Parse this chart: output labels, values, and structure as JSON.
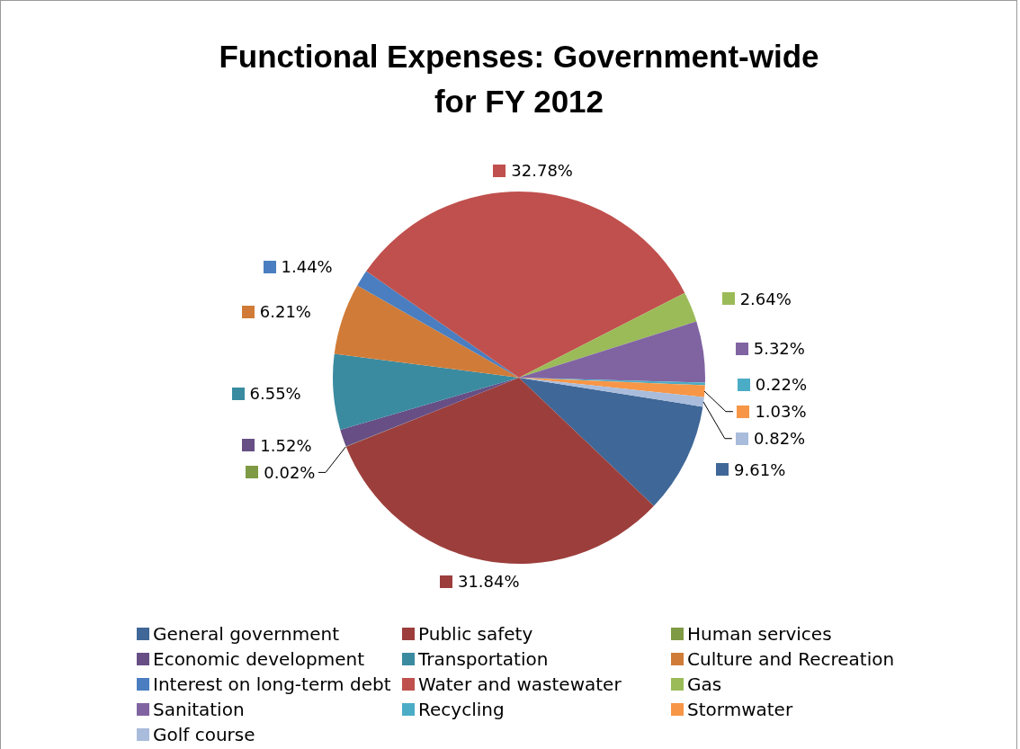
{
  "chart_data": {
    "type": "pie",
    "title": "Functional Expenses: Government-wide for FY 2012",
    "categories": [
      "General government",
      "Public safety",
      "Human services",
      "Economic development",
      "Transportation",
      "Culture and Recreation",
      "Interest on long-term debt",
      "Water and wastewater",
      "Gas",
      "Sanitation",
      "Recycling",
      "Stormwater",
      "Golf course"
    ],
    "values": [
      9.61,
      31.84,
      0.02,
      1.52,
      6.55,
      6.21,
      1.44,
      32.78,
      2.64,
      5.32,
      0.22,
      1.03,
      0.82
    ],
    "value_labels": [
      "9.61%",
      "31.84%",
      "0.02%",
      "1.52%",
      "6.55%",
      "6.21%",
      "1.44%",
      "32.78%",
      "2.64%",
      "5.32%",
      "0.22%",
      "1.03%",
      "0.82%"
    ],
    "colors": [
      "#3f6797",
      "#9c3f3c",
      "#7e9a45",
      "#674f85",
      "#3a8ba0",
      "#d07c38",
      "#4a7ec0",
      "#c0504d",
      "#9bbb59",
      "#8064a2",
      "#4bacc6",
      "#f79646",
      "#a9bcdb"
    ],
    "legend": "bottom"
  }
}
